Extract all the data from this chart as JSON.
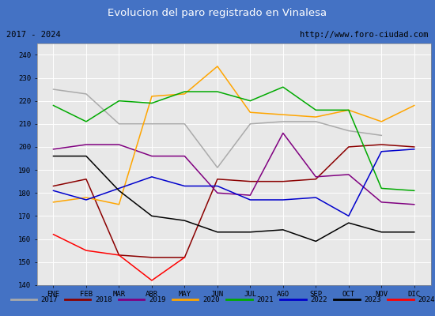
{
  "title": "Evolucion del paro registrado en Vinalesa",
  "subtitle_left": "2017 - 2024",
  "subtitle_right": "http://www.foro-ciudad.com",
  "xlabel_months": [
    "ENE",
    "FEB",
    "MAR",
    "ABR",
    "MAY",
    "JUN",
    "JUL",
    "AGO",
    "SEP",
    "OCT",
    "NOV",
    "DIC"
  ],
  "ylim": [
    140,
    245
  ],
  "yticks": [
    140,
    150,
    160,
    170,
    180,
    190,
    200,
    210,
    220,
    230,
    240
  ],
  "series": {
    "2017": {
      "color": "#aaaaaa",
      "values": [
        225,
        223,
        210,
        210,
        210,
        191,
        210,
        211,
        211,
        207,
        205,
        null
      ]
    },
    "2018": {
      "color": "#8b0000",
      "values": [
        183,
        186,
        153,
        152,
        152,
        186,
        185,
        185,
        186,
        200,
        201,
        200
      ]
    },
    "2019": {
      "color": "#800080",
      "values": [
        199,
        201,
        201,
        196,
        196,
        180,
        179,
        206,
        187,
        188,
        176,
        175
      ]
    },
    "2020": {
      "color": "#ffa500",
      "values": [
        176,
        178,
        175,
        222,
        223,
        235,
        215,
        214,
        213,
        216,
        211,
        218
      ]
    },
    "2021": {
      "color": "#00aa00",
      "values": [
        218,
        211,
        220,
        219,
        224,
        224,
        220,
        226,
        216,
        216,
        182,
        181
      ]
    },
    "2022": {
      "color": "#0000cc",
      "values": [
        181,
        177,
        182,
        187,
        183,
        183,
        177,
        177,
        178,
        170,
        198,
        199
      ]
    },
    "2023": {
      "color": "#000000",
      "values": [
        196,
        196,
        181,
        170,
        168,
        163,
        163,
        164,
        159,
        167,
        163,
        163
      ]
    },
    "2024": {
      "color": "#ff0000",
      "values": [
        162,
        155,
        153,
        142,
        152,
        null,
        null,
        null,
        null,
        null,
        null,
        null
      ]
    }
  },
  "title_bg_color": "#5b8dd9",
  "title_text_color": "#ffffff",
  "subtitle_bg_color": "#f0f0f0",
  "plot_bg_color": "#e8e8e8",
  "grid_color": "#ffffff",
  "outer_bg_color": "#4472c4",
  "legend_bg_color": "#f0f0f0",
  "legend_border_color": "#aaaaaa"
}
